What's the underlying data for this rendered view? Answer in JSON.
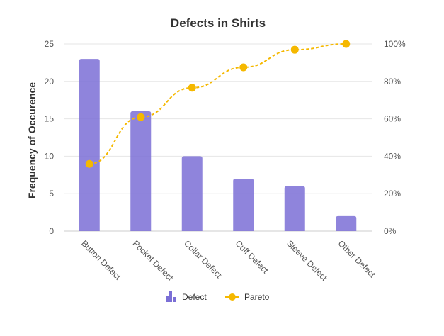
{
  "chart_data": {
    "type": "bar",
    "title": "Defects in Shirts",
    "ylabel": "Frequency of Occurence",
    "ylabel_right": "",
    "categories": [
      "Button Defect",
      "Pocket Defect",
      "Collar Defect",
      "Cuff Defect",
      "Sleeve Defect",
      "Other Defect"
    ],
    "series": [
      {
        "name": "Defect",
        "kind": "bar",
        "values": [
          23,
          16,
          10,
          7,
          6,
          2
        ],
        "color": "#7b6fd6"
      },
      {
        "name": "Pareto",
        "kind": "line",
        "axis": "right",
        "values": [
          35.9,
          60.9,
          76.6,
          87.5,
          96.9,
          100
        ],
        "color": "#f5b800",
        "dashed": true
      }
    ],
    "ylim": [
      0,
      25
    ],
    "yticks": [
      0,
      5,
      10,
      15,
      20,
      25
    ],
    "y2lim": [
      0,
      100
    ],
    "y2ticks": [
      "0%",
      "20%",
      "40%",
      "60%",
      "80%",
      "100%"
    ],
    "grid": true,
    "legend": "bottom"
  }
}
